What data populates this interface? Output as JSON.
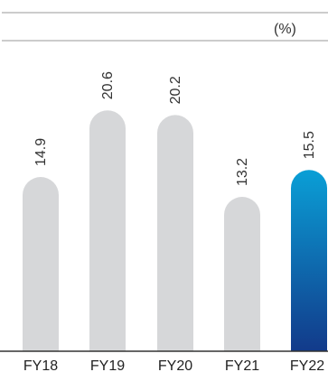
{
  "chart_data": {
    "type": "bar",
    "unit": "(%)",
    "categories": [
      "FY18",
      "FY19",
      "FY20",
      "FY21",
      "FY22"
    ],
    "values": [
      14.9,
      20.6,
      20.2,
      13.2,
      15.5
    ],
    "ylim": [
      0,
      30
    ],
    "grid": false,
    "colors": {
      "bar": "#d6d7d9",
      "highlight_top": "#0a9fd6",
      "highlight_bottom": "#123a8a",
      "rule": "#9a9a9a",
      "baseline": "#333333"
    },
    "highlight_index": 4
  }
}
